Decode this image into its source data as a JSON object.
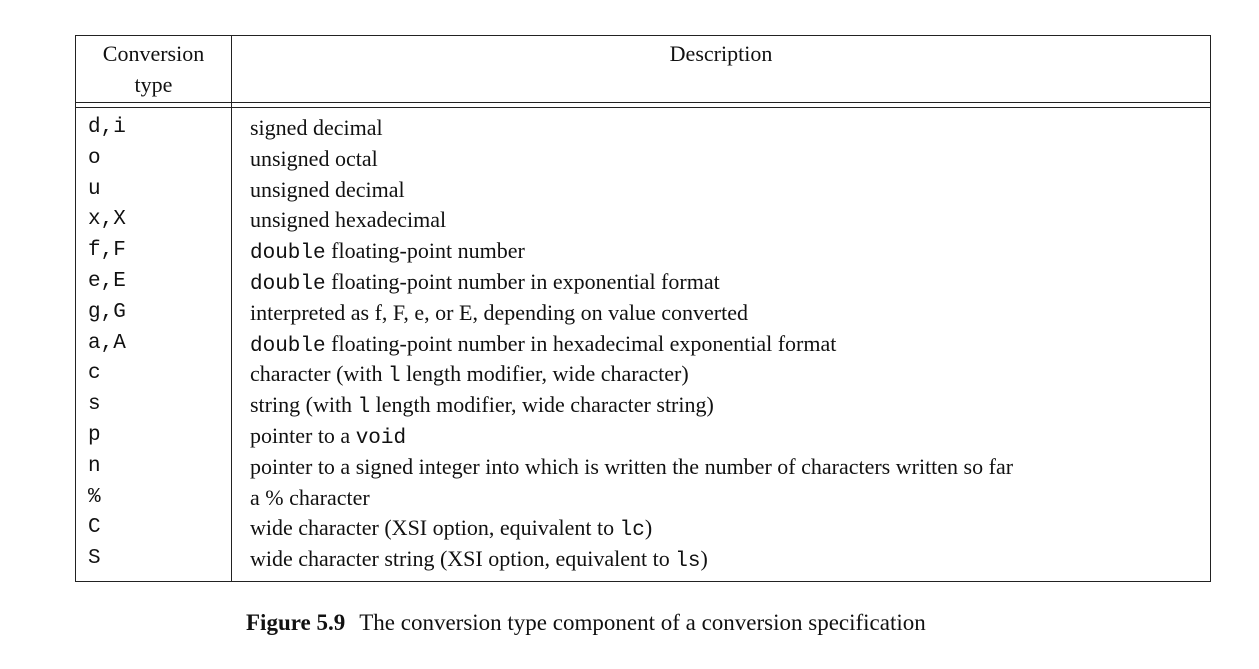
{
  "header": {
    "col1_line1": "Conversion",
    "col1_line2": "type",
    "col2": "Description"
  },
  "rows": [
    {
      "type": "d,i",
      "desc": [
        {
          "t": "signed decimal"
        }
      ]
    },
    {
      "type": "o",
      "desc": [
        {
          "t": "unsigned octal"
        }
      ]
    },
    {
      "type": "u",
      "desc": [
        {
          "t": "unsigned decimal"
        }
      ]
    },
    {
      "type": "x,X",
      "desc": [
        {
          "t": "unsigned hexadecimal"
        }
      ]
    },
    {
      "type": "f,F",
      "desc": [
        {
          "t": "double",
          "code": true
        },
        {
          "t": " floating-point number"
        }
      ]
    },
    {
      "type": "e,E",
      "desc": [
        {
          "t": "double",
          "code": true
        },
        {
          "t": " floating-point number in exponential format"
        }
      ]
    },
    {
      "type": "g,G",
      "desc": [
        {
          "t": "interpreted as f, F, e, or E, depending on value converted"
        }
      ]
    },
    {
      "type": "a,A",
      "desc": [
        {
          "t": "double",
          "code": true
        },
        {
          "t": " floating-point number in hexadecimal exponential format"
        }
      ]
    },
    {
      "type": "c",
      "desc": [
        {
          "t": "character (with "
        },
        {
          "t": "l",
          "code": true
        },
        {
          "t": " length modifier, wide character)"
        }
      ]
    },
    {
      "type": "s",
      "desc": [
        {
          "t": "string (with "
        },
        {
          "t": "l",
          "code": true
        },
        {
          "t": " length modifier, wide character string)"
        }
      ]
    },
    {
      "type": "p",
      "desc": [
        {
          "t": "pointer to a "
        },
        {
          "t": "void",
          "code": true
        }
      ]
    },
    {
      "type": "n",
      "desc": [
        {
          "t": "pointer to a signed integer into which is written the number of characters written so far"
        }
      ]
    },
    {
      "type": "%",
      "desc": [
        {
          "t": "a % character"
        }
      ]
    },
    {
      "type": "C",
      "desc": [
        {
          "t": "wide character (XSI option, equivalent to "
        },
        {
          "t": "lc",
          "code": true
        },
        {
          "t": ")"
        }
      ]
    },
    {
      "type": "S",
      "desc": [
        {
          "t": "wide character string (XSI option, equivalent to "
        },
        {
          "t": "ls",
          "code": true
        },
        {
          "t": ")"
        }
      ]
    }
  ],
  "caption": {
    "label": "Figure 5.9",
    "text": "The conversion type component of a conversion specification"
  }
}
